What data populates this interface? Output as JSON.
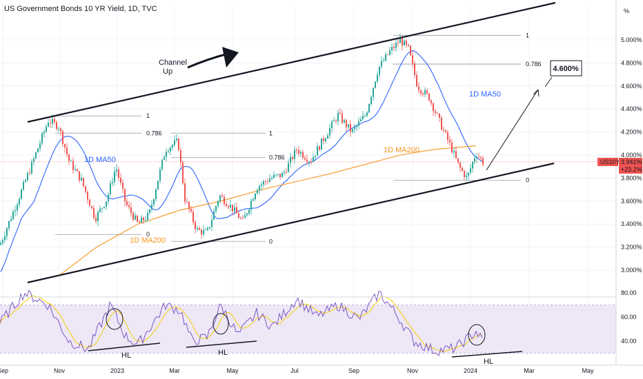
{
  "chart_data": {
    "type": "line",
    "title": "US Government Bonds 10 YR Yield, 1D, TVC",
    "symbol": "US10Y",
    "last_price": "3.941%",
    "change": "+23.2%",
    "price_axis_unit": "%",
    "y_ticks": [
      "5.000%",
      "4.800%",
      "4.600%",
      "4.400%",
      "4.200%",
      "4.000%",
      "3.800%",
      "3.600%",
      "3.400%",
      "3.200%",
      "3.000%"
    ],
    "ylim": [
      2.9,
      5.25
    ],
    "x_ticks": [
      "Sep",
      "Nov",
      "2023",
      "Mar",
      "May",
      "Jul",
      "Sep",
      "Nov",
      "2024",
      "Mar",
      "May"
    ],
    "series": [
      {
        "name": "1D MA50",
        "color": "#2962ff"
      },
      {
        "name": "1D MA200",
        "color": "#f7931a"
      }
    ],
    "rsi": {
      "ticks": [
        "80.00",
        "60.00",
        "40.00"
      ],
      "ylim": [
        25,
        87
      ],
      "band": [
        30,
        70
      ],
      "color": "#7e57c2",
      "ma_color": "#f5d000"
    },
    "fib_levels": [
      {
        "label": "1",
        "value": 4.34
      },
      {
        "label": "0.786",
        "value": 4.19
      },
      {
        "label": "0",
        "value": 3.31
      },
      {
        "label": "1",
        "value": 4.19
      },
      {
        "label": "0.786",
        "value": 3.98
      },
      {
        "label": "0",
        "value": 3.25
      },
      {
        "label": "1",
        "value": 5.04
      },
      {
        "label": "0.786",
        "value": 4.79
      },
      {
        "label": "0",
        "value": 3.78
      }
    ],
    "annotations": {
      "channel_line1": "Channel",
      "channel_line2": "Up",
      "target": "4.600%",
      "ma50_label": "1D MA50",
      "ma200_label": "1D MA200",
      "hl1": "HL",
      "hl2": "HL",
      "hl3": "HL"
    },
    "colors": {
      "up": "#26a69a",
      "down": "#ef5350",
      "ma50": "#2962ff",
      "ma200": "#f7931a",
      "rsi": "#7e57c2",
      "rsi_ma": "#f5d000",
      "rsi_band": "#ede7f6",
      "price_badge": "#ef5350"
    }
  }
}
